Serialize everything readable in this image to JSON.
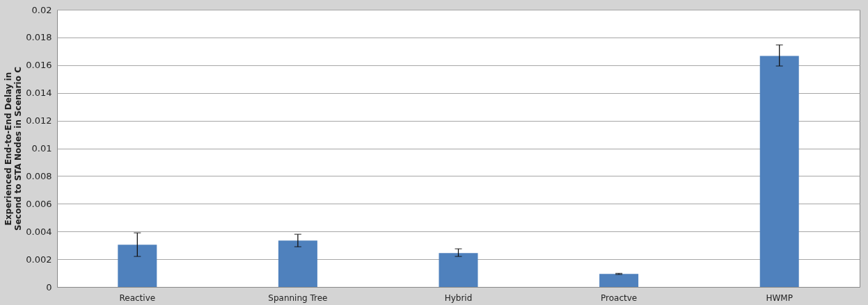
{
  "chart_data": {
    "type": "bar",
    "ylabel": "Experienced End-to-End Delay in Second to STA Nodes  in Scenario C",
    "categories": [
      "Reactive",
      "Spanning Tree",
      "Hybrid",
      "Proactve",
      "HWMP"
    ],
    "values": [
      0.00304,
      0.00334,
      0.00244,
      0.00094,
      0.01667
    ],
    "errors": [
      [
        0.0022,
        0.0039
      ],
      [
        0.0029,
        0.0038
      ],
      [
        0.0022,
        0.00275
      ],
      [
        0.0009,
        0.00098
      ],
      [
        0.01594,
        0.01746
      ]
    ],
    "color": "#4f81bd",
    "ylim": [
      0,
      0.02
    ],
    "yticks": [
      0,
      0.002,
      0.004,
      0.006,
      0.008,
      0.01,
      0.012,
      0.014,
      0.016,
      0.018,
      0.02
    ],
    "grid": "y"
  }
}
